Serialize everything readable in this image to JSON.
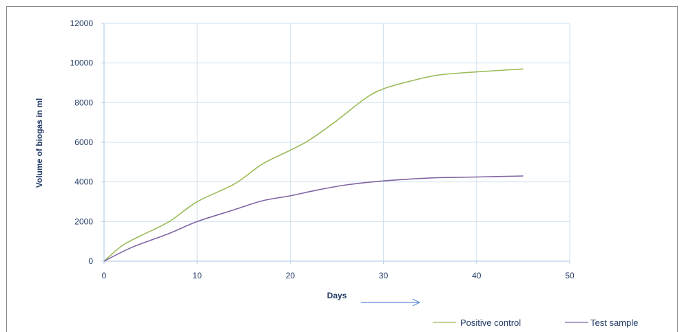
{
  "chart_data": {
    "type": "line",
    "title": "",
    "xlabel": "Days",
    "ylabel": "Volume of biogas in ml",
    "xlim": [
      0,
      50
    ],
    "ylim": [
      0,
      12000
    ],
    "xticks": [
      0,
      10,
      20,
      30,
      40,
      50
    ],
    "yticks": [
      0,
      2000,
      4000,
      6000,
      8000,
      10000,
      12000
    ],
    "grid": true,
    "legend_position": "bottom-right",
    "series": [
      {
        "name": "Positive control",
        "color": "#9bbb59",
        "points": [
          [
            0,
            0
          ],
          [
            2,
            800
          ],
          [
            4,
            1300
          ],
          [
            7,
            2000
          ],
          [
            10,
            3000
          ],
          [
            14,
            3900
          ],
          [
            17,
            4900
          ],
          [
            20,
            5600
          ],
          [
            22,
            6100
          ],
          [
            25,
            7100
          ],
          [
            28,
            8200
          ],
          [
            30,
            8700
          ],
          [
            33,
            9100
          ],
          [
            36,
            9400
          ],
          [
            40,
            9550
          ],
          [
            45,
            9700
          ]
        ]
      },
      {
        "name": "Test sample",
        "color": "#8064a2",
        "points": [
          [
            0,
            0
          ],
          [
            3,
            700
          ],
          [
            7,
            1400
          ],
          [
            10,
            2000
          ],
          [
            14,
            2600
          ],
          [
            17,
            3050
          ],
          [
            20,
            3300
          ],
          [
            23,
            3600
          ],
          [
            26,
            3850
          ],
          [
            30,
            4050
          ],
          [
            35,
            4200
          ],
          [
            40,
            4250
          ],
          [
            45,
            4300
          ]
        ]
      }
    ],
    "annotation": "arrow-right-icon"
  }
}
